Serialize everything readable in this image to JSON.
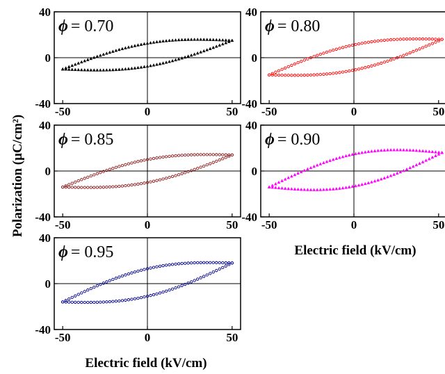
{
  "figure": {
    "ylabel": "Polarization (μC/cm²)",
    "xlabel": "Electric field (kV/cm)"
  },
  "chart_data": [
    {
      "type": "scatter",
      "label": "ϕ = 0.70",
      "phi_symbol": "ϕ",
      "phi_value": "= 0.70",
      "color": "#000000",
      "marker": "triangle",
      "xlim": [
        -55,
        55
      ],
      "ylim": [
        -40,
        40
      ],
      "xticks": [
        -50,
        0,
        50
      ],
      "yticks": [
        -40,
        0,
        40
      ],
      "xticklabels": [
        "-50",
        "0",
        "50"
      ],
      "yticklabels": [
        "-40",
        "0",
        "40"
      ],
      "loop": {
        "emax": 50,
        "pmax": 15,
        "emin": -50,
        "pmin": -10,
        "pr": 10,
        "ec": 30
      }
    },
    {
      "type": "scatter",
      "label": "ϕ = 0.80",
      "phi_symbol": "ϕ",
      "phi_value": "= 0.80",
      "color": "#ff0000",
      "marker": "circle",
      "xlim": [
        -55,
        55
      ],
      "ylim": [
        -40,
        40
      ],
      "xticks": [
        -50,
        0,
        50
      ],
      "yticks": [
        -40,
        0,
        40
      ],
      "xticklabels": [
        "-50",
        "0",
        "50"
      ],
      "yticklabels": [
        "-40",
        "0",
        "40"
      ],
      "loop": {
        "emax": 52,
        "pmax": 16,
        "emin": -50,
        "pmin": -15,
        "pr": 11,
        "ec": 30
      }
    },
    {
      "type": "scatter",
      "label": "ϕ = 0.85",
      "phi_symbol": "ϕ",
      "phi_value": "= 0.85",
      "color": "#8b1a1a",
      "marker": "circle",
      "xlim": [
        -55,
        55
      ],
      "ylim": [
        -40,
        40
      ],
      "xticks": [
        -50,
        0,
        50
      ],
      "yticks": [
        -40,
        0,
        40
      ],
      "xticklabels": [
        "-50",
        "0",
        "50"
      ],
      "yticklabels": [
        "-40",
        "0",
        "40"
      ],
      "loop": {
        "emax": 50,
        "pmax": 14,
        "emin": -50,
        "pmin": -14,
        "pr": 10,
        "ec": 30
      }
    },
    {
      "type": "scatter",
      "label": "ϕ = 0.90",
      "phi_symbol": "ϕ",
      "phi_value": "= 0.90",
      "color": "#ff00ff",
      "marker": "triangle",
      "xlim": [
        -55,
        55
      ],
      "ylim": [
        -40,
        40
      ],
      "xticks": [
        -50,
        0,
        50
      ],
      "yticks": [
        -40,
        0,
        40
      ],
      "xticklabels": [
        "-50",
        "0",
        "50"
      ],
      "yticklabels": [
        "-40",
        "0",
        "40"
      ],
      "loop": {
        "emax": 52,
        "pmax": 16,
        "emin": -50,
        "pmin": -14,
        "pr": 14,
        "ec": 28
      }
    },
    {
      "type": "scatter",
      "label": "ϕ = 0.95",
      "phi_symbol": "ϕ",
      "phi_value": "= 0.95",
      "color": "#00008b",
      "marker": "circle",
      "xlim": [
        -55,
        55
      ],
      "ylim": [
        -40,
        40
      ],
      "xticks": [
        -50,
        0,
        50
      ],
      "yticks": [
        -40,
        0,
        40
      ],
      "xticklabels": [
        "-50",
        "0",
        "50"
      ],
      "yticklabels": [
        "-40",
        "0",
        "40"
      ],
      "loop": {
        "emax": 50,
        "pmax": 18,
        "emin": -50,
        "pmin": -16,
        "pr": 12,
        "ec": 27
      }
    }
  ]
}
